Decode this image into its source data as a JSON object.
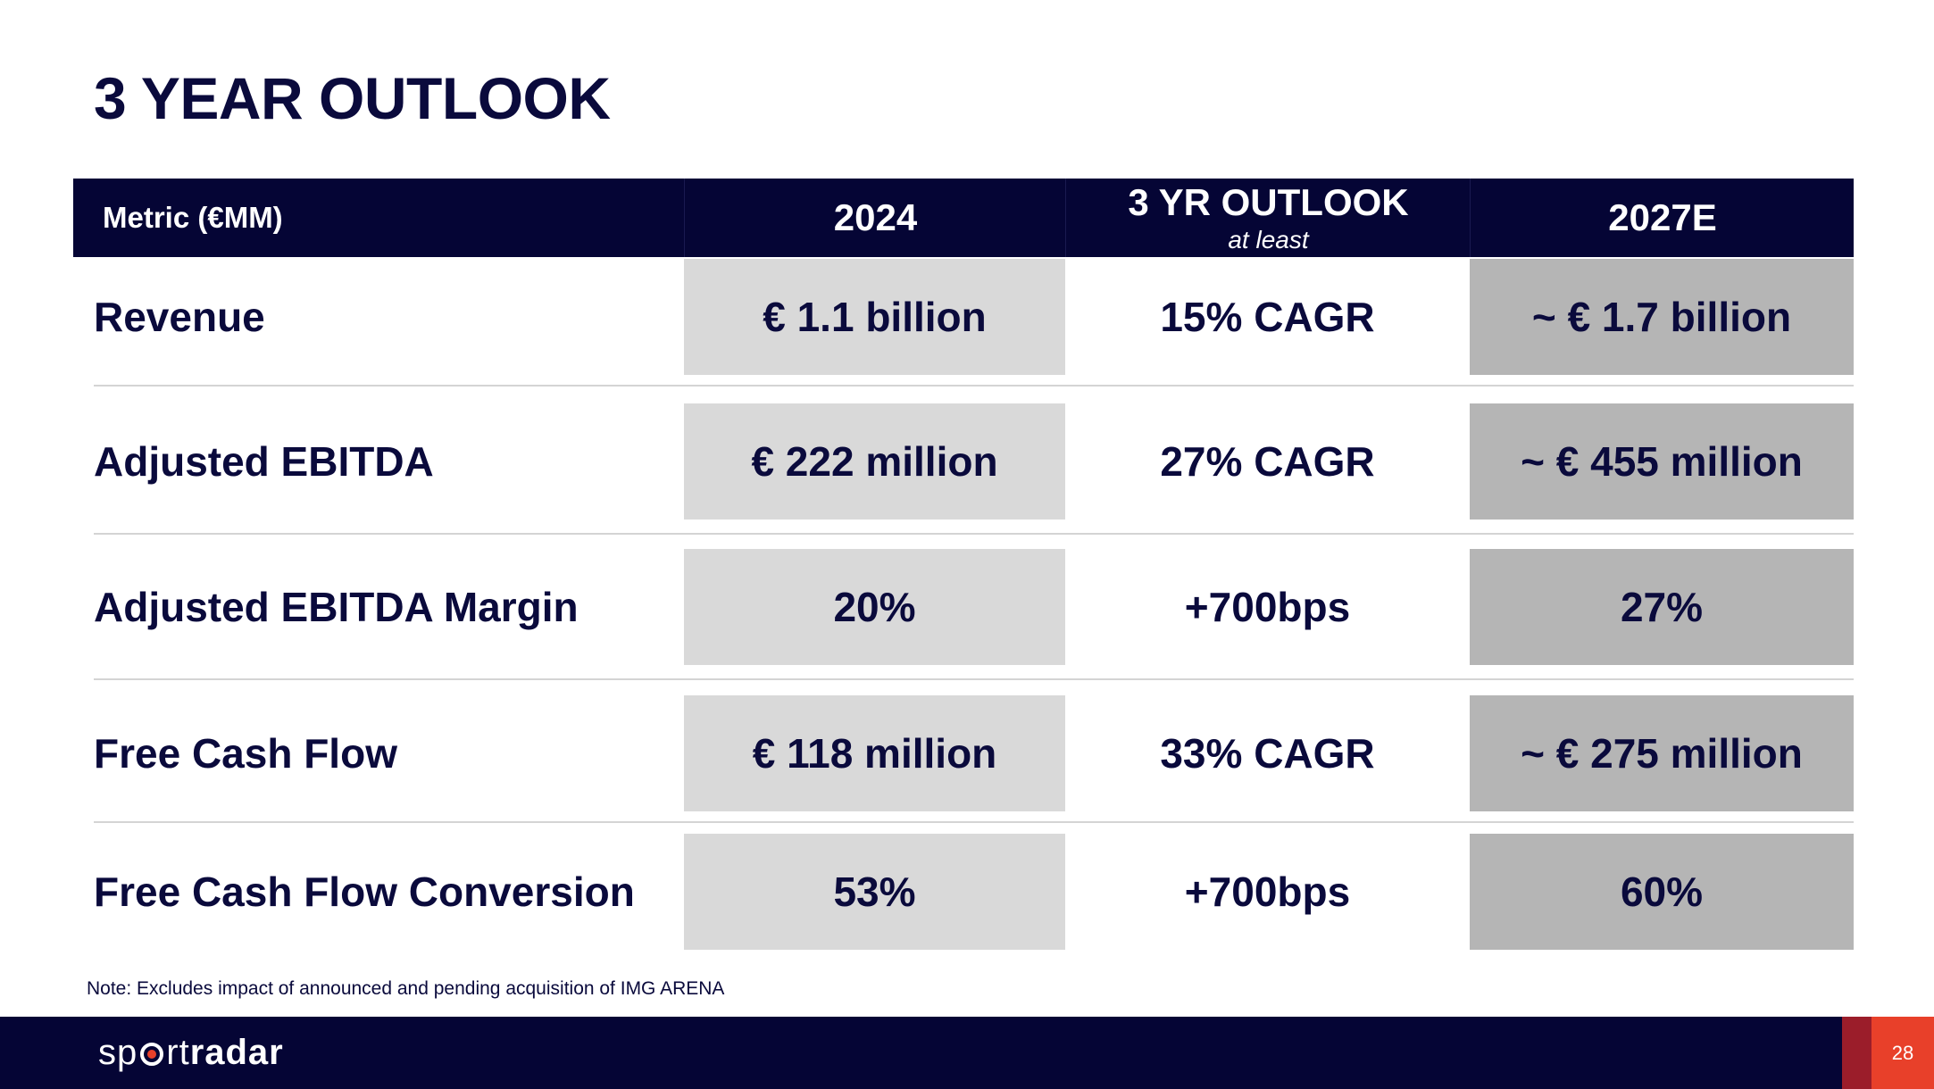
{
  "title": "3 YEAR OUTLOOK",
  "table": {
    "headers": {
      "metric": "Metric (€MM)",
      "year_2024": "2024",
      "outlook": "3 YR OUTLOOK",
      "outlook_sub": "at least",
      "year_2027": "2027E"
    },
    "rows": [
      {
        "metric": "Revenue",
        "v2024": "€ 1.1 billion",
        "outlook": "15% CAGR",
        "v2027": "~ € 1.7 billion"
      },
      {
        "metric": "Adjusted EBITDA",
        "v2024": "€ 222 million",
        "outlook": "27% CAGR",
        "v2027": "~ € 455 million"
      },
      {
        "metric": "Adjusted EBITDA Margin",
        "v2024": "20%",
        "outlook": "+700bps",
        "v2027": "27%"
      },
      {
        "metric": "Free Cash Flow",
        "v2024": "€ 118 million",
        "outlook": "33% CAGR",
        "v2027": "~ € 275 million"
      },
      {
        "metric": "Free Cash Flow Conversion",
        "v2024": "53%",
        "outlook": "+700bps",
        "v2027": "60%"
      }
    ]
  },
  "note": "Note: Excludes impact of announced and pending acquisition of IMG ARENA",
  "footer": {
    "logo_light_1": "sp",
    "logo_light_2": "rt",
    "logo_bold": "radar",
    "page_number": "28"
  },
  "colors": {
    "navy": "#050535",
    "text": "#0a0a3c",
    "cell_light": "#d9d9d9",
    "cell_dark": "#b5b5b5",
    "accent": "#e8402a"
  }
}
